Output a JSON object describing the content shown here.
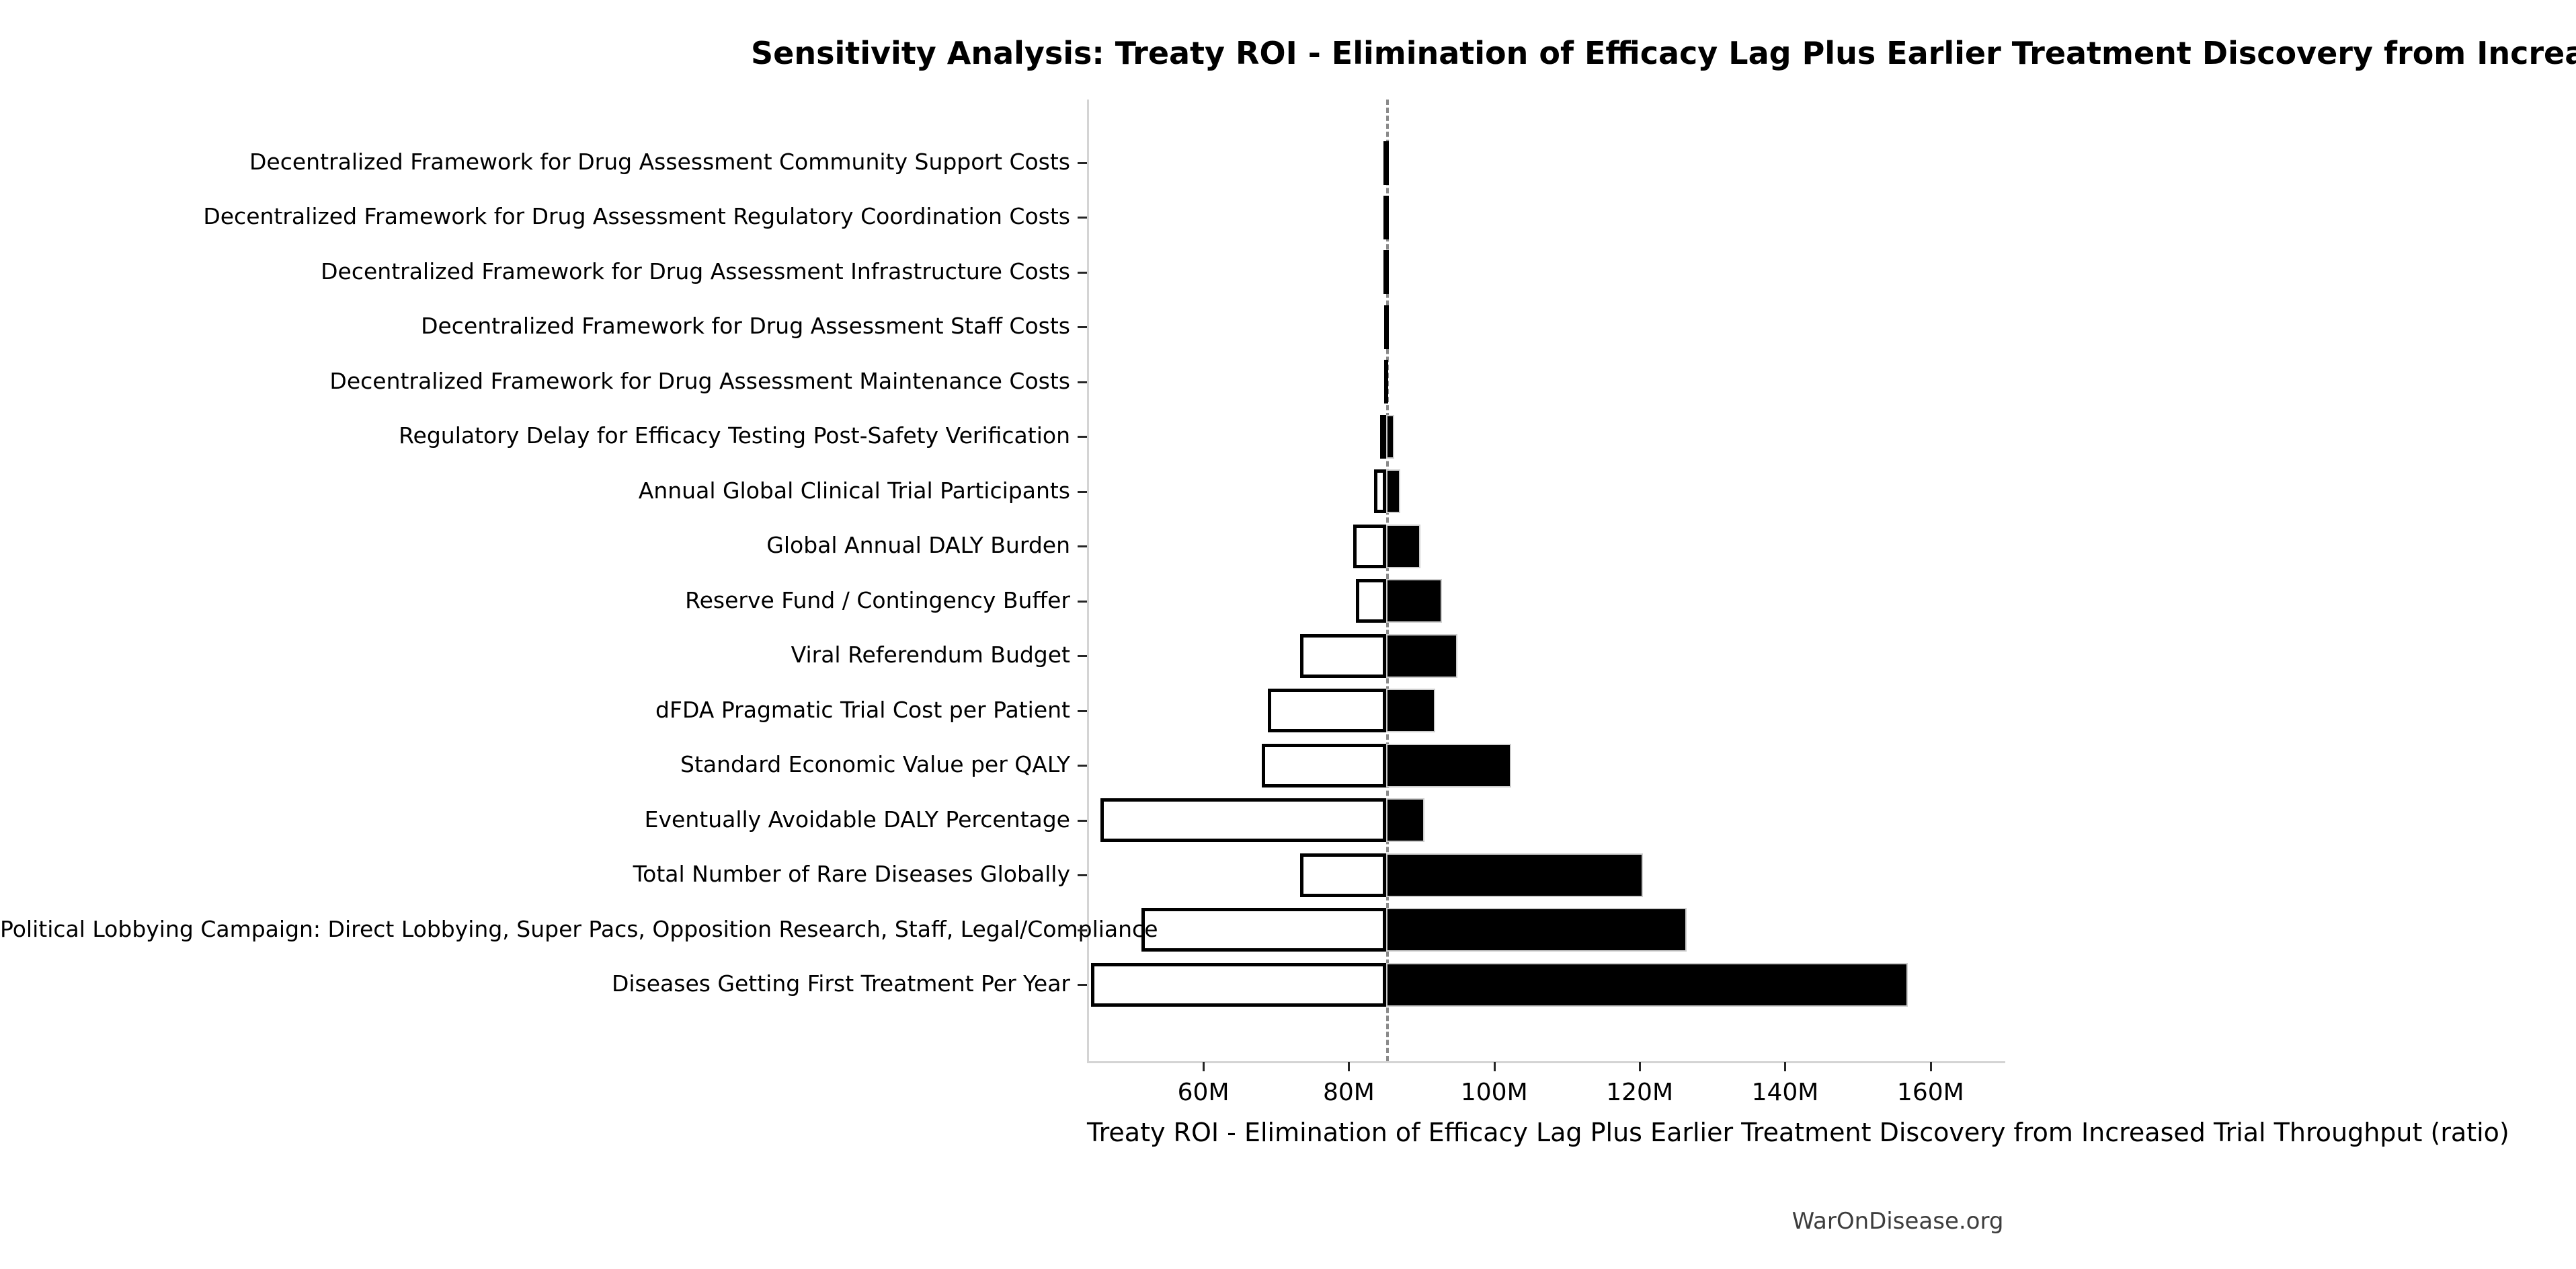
{
  "footer": "WarOnDisease.org",
  "chart_data": {
    "type": "bar",
    "variant": "tornado-sensitivity",
    "orientation": "horizontal",
    "title": "Sensitivity Analysis: Treaty ROI - Elimination of Efficacy Lag Plus Earlier Treatment Discovery from Increased Trial Throughput",
    "xlabel": "Treaty ROI - Elimination of Efficacy Lag Plus Earlier Treatment Discovery from Increased Trial Throughput (ratio)",
    "unit": "M",
    "baseline_value": 84.9,
    "xlim": [
      44,
      170
    ],
    "xtick_values": [
      60,
      80,
      100,
      120,
      140,
      160
    ],
    "xtick_labels": [
      "60M",
      "80M",
      "100M",
      "120M",
      "140M",
      "160M"
    ],
    "grid": false,
    "legend": null,
    "categories": [
      "Decentralized Framework for Drug Assessment Community Support Costs",
      "Decentralized Framework for Drug Assessment Regulatory Coordination Costs",
      "Decentralized Framework for Drug Assessment Infrastructure Costs",
      "Decentralized Framework for Drug Assessment Staff Costs",
      "Decentralized Framework for Drug Assessment Maintenance Costs",
      "Regulatory Delay for Efficacy Testing Post-Safety Verification",
      "Annual Global Clinical Trial Participants",
      "Global Annual DALY Burden",
      "Reserve Fund / Contingency Buffer",
      "Viral Referendum Budget",
      "dFDA Pragmatic Trial Cost per Patient",
      "Standard Economic Value per QALY",
      "Eventually Avoidable DALY Percentage",
      "Total Number of Rare Diseases Globally",
      "Political Lobbying Campaign: Direct Lobbying, Super Pacs, Opposition Research, Staff, Legal/Compliance",
      "Diseases Getting First Treatment Per Year"
    ],
    "series": [
      {
        "name": "low_estimate",
        "values": [
          84.5,
          84.5,
          84.5,
          84.6,
          84.6,
          84.0,
          83.2,
          80.3,
          80.7,
          73.0,
          68.6,
          67.8,
          45.6,
          73.0,
          51.2,
          44.3
        ]
      },
      {
        "name": "high_estimate",
        "values": [
          85.2,
          85.2,
          85.2,
          85.2,
          85.1,
          86.0,
          86.8,
          89.6,
          92.5,
          94.7,
          91.6,
          102.1,
          90.1,
          120.2,
          126.2,
          156.6
        ]
      }
    ],
    "colors": {
      "low_fill": "#ffffff",
      "low_edge": "#000000",
      "high_fill": "#000000",
      "high_edge": "#cdcdcd",
      "baseline_line": "#8a8a8a",
      "spine": "#d4d4d4",
      "text": "#000000",
      "footer_text": "#3d3d3d"
    }
  }
}
